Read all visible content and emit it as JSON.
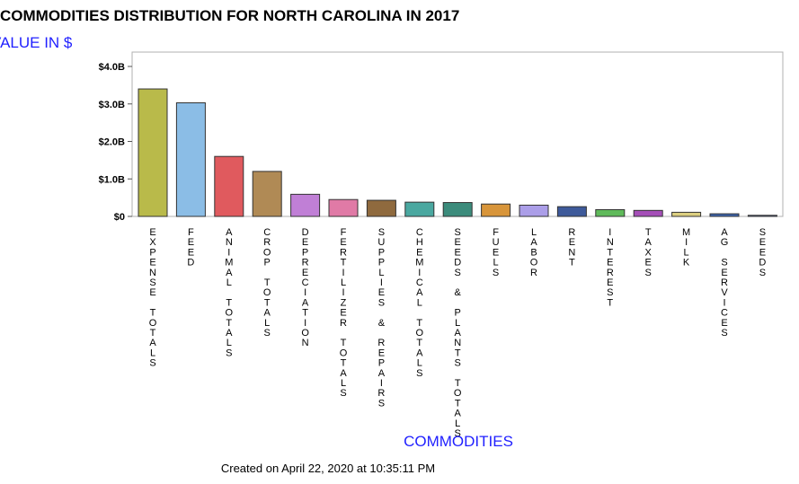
{
  "title": "COMMODITIES DISTRIBUTION FOR NORTH CAROLINA IN 2017",
  "y_axis_label": "VALUE IN $",
  "x_axis_label": "COMMODITIES",
  "footer": "Created on April 22, 2020 at 10:35:11 PM",
  "chart_data": {
    "type": "bar",
    "title": "COMMODITIES DISTRIBUTION FOR NORTH CAROLINA IN 2017",
    "xlabel": "COMMODITIES",
    "ylabel": "VALUE IN $",
    "ylim": [
      0,
      4.0
    ],
    "yticks": [
      {
        "value": 0,
        "label": "$0"
      },
      {
        "value": 1.0,
        "label": "$1.0B"
      },
      {
        "value": 2.0,
        "label": "$2.0B"
      },
      {
        "value": 3.0,
        "label": "$3.0B"
      },
      {
        "value": 4.0,
        "label": "$4.0B"
      }
    ],
    "grid": false,
    "categories": [
      "EXPENSE TOTALS",
      "FEED",
      "ANIMAL TOTALS",
      "CROP TOTALS",
      "DEPRECIATION",
      "FERTILIZER TOTALS",
      "SUPPLIES & REPAIRS",
      "CHEMICAL TOTALS",
      "SEEDS & PLANTS TOTALS",
      "FUELS",
      "LABOR",
      "RENT",
      "INTEREST",
      "TAXES",
      "MILK",
      "AG SERVICES",
      "SEEDS"
    ],
    "values": [
      3.4,
      3.03,
      1.6,
      1.2,
      0.59,
      0.45,
      0.43,
      0.38,
      0.37,
      0.33,
      0.3,
      0.26,
      0.18,
      0.16,
      0.11,
      0.07,
      0.03
    ],
    "colors": [
      "#b9ba4a",
      "#8bbde6",
      "#e05a5e",
      "#b08a55",
      "#c07fd6",
      "#e07aa6",
      "#8f6a3e",
      "#4aa8a0",
      "#3c8c7c",
      "#d8953a",
      "#ab9ee8",
      "#3e5a9a",
      "#5fba5a",
      "#a54fb8",
      "#dccf80",
      "#3e66b0",
      "#5a6fa0"
    ]
  }
}
